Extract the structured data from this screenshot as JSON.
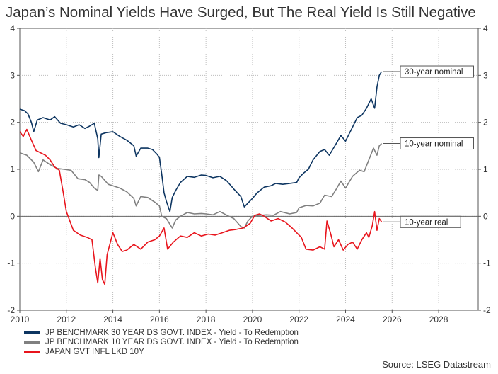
{
  "title": "Japan’s Nominal Yields Have Surged, But The Real Yield Is Still Negative",
  "source": "Source: LSEG Datastream",
  "chart_data": {
    "type": "line",
    "xlim": [
      2010,
      2029.7
    ],
    "ylim": [
      -2,
      4
    ],
    "x_ticks": [
      "2010",
      "2012",
      "2014",
      "2016",
      "2018",
      "2020",
      "2022",
      "2024",
      "2026",
      "2028"
    ],
    "y_ticks": [
      "4",
      "3",
      "2",
      "1",
      "0",
      "-1",
      "-2"
    ],
    "grid": true,
    "legend_position": "bottom-left",
    "series": [
      {
        "name": "JP BENCHMARK 30 YEAR DS GOVT. INDEX - Yield - To Redemption",
        "color": "#0d3561",
        "annotation": "30-year nominal",
        "points": [
          [
            2010.0,
            2.28
          ],
          [
            2010.2,
            2.25
          ],
          [
            2010.35,
            2.18
          ],
          [
            2010.5,
            2.0
          ],
          [
            2010.6,
            1.8
          ],
          [
            2010.75,
            2.05
          ],
          [
            2011.0,
            2.1
          ],
          [
            2011.3,
            2.05
          ],
          [
            2011.5,
            2.12
          ],
          [
            2011.75,
            1.98
          ],
          [
            2012.0,
            1.95
          ],
          [
            2012.3,
            1.9
          ],
          [
            2012.55,
            1.95
          ],
          [
            2012.8,
            1.87
          ],
          [
            2013.0,
            1.92
          ],
          [
            2013.2,
            1.98
          ],
          [
            2013.35,
            1.65
          ],
          [
            2013.4,
            1.25
          ],
          [
            2013.5,
            1.75
          ],
          [
            2013.7,
            1.78
          ],
          [
            2014.0,
            1.8
          ],
          [
            2014.3,
            1.7
          ],
          [
            2014.6,
            1.62
          ],
          [
            2014.9,
            1.5
          ],
          [
            2015.0,
            1.28
          ],
          [
            2015.2,
            1.45
          ],
          [
            2015.5,
            1.45
          ],
          [
            2015.7,
            1.42
          ],
          [
            2015.9,
            1.32
          ],
          [
            2016.0,
            1.25
          ],
          [
            2016.1,
            0.9
          ],
          [
            2016.2,
            0.5
          ],
          [
            2016.3,
            0.32
          ],
          [
            2016.45,
            0.1
          ],
          [
            2016.55,
            0.4
          ],
          [
            2016.7,
            0.55
          ],
          [
            2016.9,
            0.72
          ],
          [
            2017.2,
            0.85
          ],
          [
            2017.5,
            0.83
          ],
          [
            2017.8,
            0.88
          ],
          [
            2018.0,
            0.87
          ],
          [
            2018.3,
            0.82
          ],
          [
            2018.6,
            0.85
          ],
          [
            2018.9,
            0.75
          ],
          [
            2019.2,
            0.58
          ],
          [
            2019.5,
            0.42
          ],
          [
            2019.65,
            0.2
          ],
          [
            2019.8,
            0.28
          ],
          [
            2020.0,
            0.38
          ],
          [
            2020.2,
            0.5
          ],
          [
            2020.5,
            0.62
          ],
          [
            2020.8,
            0.65
          ],
          [
            2021.0,
            0.7
          ],
          [
            2021.3,
            0.68
          ],
          [
            2021.6,
            0.7
          ],
          [
            2021.9,
            0.72
          ],
          [
            2022.0,
            0.82
          ],
          [
            2022.2,
            0.92
          ],
          [
            2022.4,
            1.0
          ],
          [
            2022.6,
            1.2
          ],
          [
            2022.9,
            1.38
          ],
          [
            2023.1,
            1.42
          ],
          [
            2023.3,
            1.3
          ],
          [
            2023.6,
            1.55
          ],
          [
            2023.8,
            1.72
          ],
          [
            2024.0,
            1.6
          ],
          [
            2024.3,
            1.9
          ],
          [
            2024.5,
            2.1
          ],
          [
            2024.7,
            2.15
          ],
          [
            2024.9,
            2.3
          ],
          [
            2025.1,
            2.5
          ],
          [
            2025.25,
            2.3
          ],
          [
            2025.35,
            2.75
          ],
          [
            2025.45,
            3.0
          ],
          [
            2025.55,
            3.08
          ]
        ]
      },
      {
        "name": "JP BENCHMARK 10 YEAR DS GOVT. INDEX - Yield - To Redemption",
        "color": "#808080",
        "annotation": "10-year nominal",
        "points": [
          [
            2010.0,
            1.35
          ],
          [
            2010.3,
            1.3
          ],
          [
            2010.6,
            1.15
          ],
          [
            2010.8,
            0.95
          ],
          [
            2011.0,
            1.2
          ],
          [
            2011.3,
            1.1
          ],
          [
            2011.6,
            1.02
          ],
          [
            2011.9,
            1.0
          ],
          [
            2012.2,
            0.98
          ],
          [
            2012.5,
            0.8
          ],
          [
            2012.8,
            0.78
          ],
          [
            2013.0,
            0.72
          ],
          [
            2013.2,
            0.6
          ],
          [
            2013.35,
            0.55
          ],
          [
            2013.4,
            0.88
          ],
          [
            2013.5,
            0.85
          ],
          [
            2013.8,
            0.68
          ],
          [
            2014.0,
            0.65
          ],
          [
            2014.3,
            0.6
          ],
          [
            2014.6,
            0.52
          ],
          [
            2014.9,
            0.38
          ],
          [
            2015.0,
            0.22
          ],
          [
            2015.2,
            0.42
          ],
          [
            2015.5,
            0.4
          ],
          [
            2015.8,
            0.3
          ],
          [
            2016.0,
            0.22
          ],
          [
            2016.1,
            0.0
          ],
          [
            2016.3,
            -0.05
          ],
          [
            2016.55,
            -0.25
          ],
          [
            2016.7,
            -0.08
          ],
          [
            2016.9,
            0.0
          ],
          [
            2017.2,
            0.08
          ],
          [
            2017.5,
            0.05
          ],
          [
            2017.8,
            0.06
          ],
          [
            2018.0,
            0.05
          ],
          [
            2018.3,
            0.03
          ],
          [
            2018.6,
            0.1
          ],
          [
            2018.9,
            0.02
          ],
          [
            2019.2,
            -0.05
          ],
          [
            2019.5,
            -0.22
          ],
          [
            2019.65,
            -0.25
          ],
          [
            2019.8,
            -0.1
          ],
          [
            2020.0,
            0.0
          ],
          [
            2020.3,
            0.02
          ],
          [
            2020.6,
            0.03
          ],
          [
            2020.9,
            0.02
          ],
          [
            2021.2,
            0.1
          ],
          [
            2021.6,
            0.05
          ],
          [
            2021.9,
            0.08
          ],
          [
            2022.0,
            0.18
          ],
          [
            2022.3,
            0.23
          ],
          [
            2022.6,
            0.22
          ],
          [
            2022.9,
            0.28
          ],
          [
            2023.1,
            0.45
          ],
          [
            2023.4,
            0.42
          ],
          [
            2023.6,
            0.58
          ],
          [
            2023.8,
            0.75
          ],
          [
            2024.0,
            0.6
          ],
          [
            2024.3,
            0.85
          ],
          [
            2024.6,
            0.98
          ],
          [
            2024.8,
            0.95
          ],
          [
            2025.0,
            1.2
          ],
          [
            2025.2,
            1.45
          ],
          [
            2025.35,
            1.3
          ],
          [
            2025.45,
            1.5
          ],
          [
            2025.55,
            1.55
          ]
        ]
      },
      {
        "name": "JAPAN GVT INFL LKD 10Y",
        "color": "#e8141c",
        "annotation": "10-year real",
        "points": [
          [
            2010.0,
            1.8
          ],
          [
            2010.15,
            1.7
          ],
          [
            2010.3,
            1.85
          ],
          [
            2010.5,
            1.62
          ],
          [
            2010.7,
            1.4
          ],
          [
            2010.9,
            1.35
          ],
          [
            2011.1,
            1.3
          ],
          [
            2011.3,
            1.2
          ],
          [
            2011.5,
            1.05
          ],
          [
            2011.7,
            0.98
          ],
          [
            2011.85,
            0.55
          ],
          [
            2012.0,
            0.1
          ],
          [
            2012.3,
            -0.3
          ],
          [
            2012.6,
            -0.4
          ],
          [
            2012.9,
            -0.45
          ],
          [
            2013.1,
            -0.5
          ],
          [
            2013.25,
            -1.1
          ],
          [
            2013.35,
            -1.42
          ],
          [
            2013.45,
            -0.9
          ],
          [
            2013.55,
            -1.35
          ],
          [
            2013.65,
            -1.45
          ],
          [
            2013.75,
            -0.82
          ],
          [
            2014.0,
            -0.35
          ],
          [
            2014.2,
            -0.6
          ],
          [
            2014.4,
            -0.75
          ],
          [
            2014.6,
            -0.72
          ],
          [
            2014.9,
            -0.6
          ],
          [
            2015.2,
            -0.7
          ],
          [
            2015.5,
            -0.55
          ],
          [
            2015.8,
            -0.5
          ],
          [
            2016.0,
            -0.42
          ],
          [
            2016.2,
            -0.25
          ],
          [
            2016.35,
            -0.7
          ],
          [
            2016.6,
            -0.55
          ],
          [
            2016.9,
            -0.42
          ],
          [
            2017.2,
            -0.45
          ],
          [
            2017.5,
            -0.35
          ],
          [
            2017.8,
            -0.42
          ],
          [
            2018.1,
            -0.38
          ],
          [
            2018.4,
            -0.4
          ],
          [
            2018.7,
            -0.35
          ],
          [
            2019.0,
            -0.3
          ],
          [
            2019.3,
            -0.28
          ],
          [
            2019.6,
            -0.25
          ],
          [
            2019.9,
            -0.15
          ],
          [
            2020.1,
            0.02
          ],
          [
            2020.3,
            0.05
          ],
          [
            2020.5,
            0.0
          ],
          [
            2020.8,
            -0.1
          ],
          [
            2021.1,
            -0.05
          ],
          [
            2021.4,
            -0.12
          ],
          [
            2021.7,
            -0.25
          ],
          [
            2021.9,
            -0.35
          ],
          [
            2022.1,
            -0.45
          ],
          [
            2022.3,
            -0.7
          ],
          [
            2022.6,
            -0.72
          ],
          [
            2022.9,
            -0.65
          ],
          [
            2023.1,
            -0.7
          ],
          [
            2023.2,
            -0.1
          ],
          [
            2023.35,
            -0.35
          ],
          [
            2023.5,
            -0.65
          ],
          [
            2023.7,
            -0.5
          ],
          [
            2023.9,
            -0.72
          ],
          [
            2024.1,
            -0.6
          ],
          [
            2024.3,
            -0.55
          ],
          [
            2024.5,
            -0.7
          ],
          [
            2024.7,
            -0.5
          ],
          [
            2024.9,
            -0.35
          ],
          [
            2025.0,
            -0.45
          ],
          [
            2025.15,
            -0.2
          ],
          [
            2025.25,
            0.1
          ],
          [
            2025.35,
            -0.3
          ],
          [
            2025.45,
            -0.05
          ],
          [
            2025.55,
            -0.12
          ]
        ]
      }
    ]
  }
}
